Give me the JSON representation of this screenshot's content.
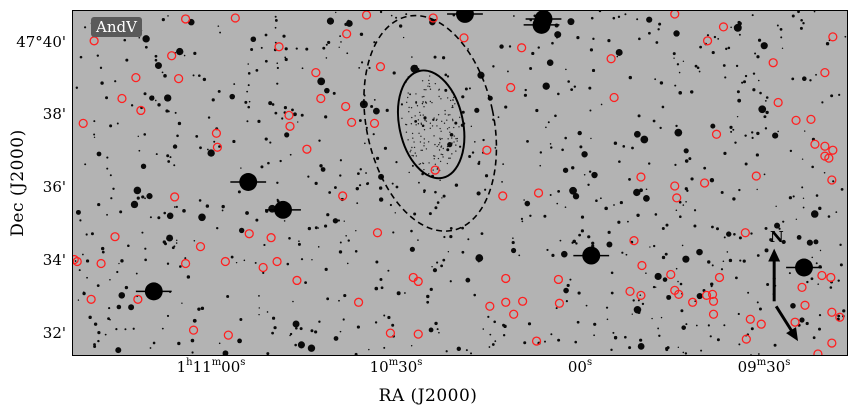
{
  "figure": {
    "label": "AndV",
    "xlabel": "RA (J2000)",
    "ylabel": "Dec (J2000)",
    "x_ticks": [
      {
        "h": "1",
        "m": "11",
        "s": "00",
        "text": "1h11m00s"
      },
      {
        "m": "10",
        "s": "30",
        "text": "10m30s"
      },
      {
        "s": "00",
        "text": "00s"
      },
      {
        "m": "09",
        "s": "30",
        "text": "09m30s"
      }
    ],
    "y_ticks": [
      "47°40'",
      "38'",
      "36'",
      "34'",
      "32'"
    ],
    "compass": {
      "north": "N"
    },
    "colors": {
      "marker": "#ff2020",
      "ellipse": "#000000",
      "sky": "#b3b3b3"
    }
  }
}
